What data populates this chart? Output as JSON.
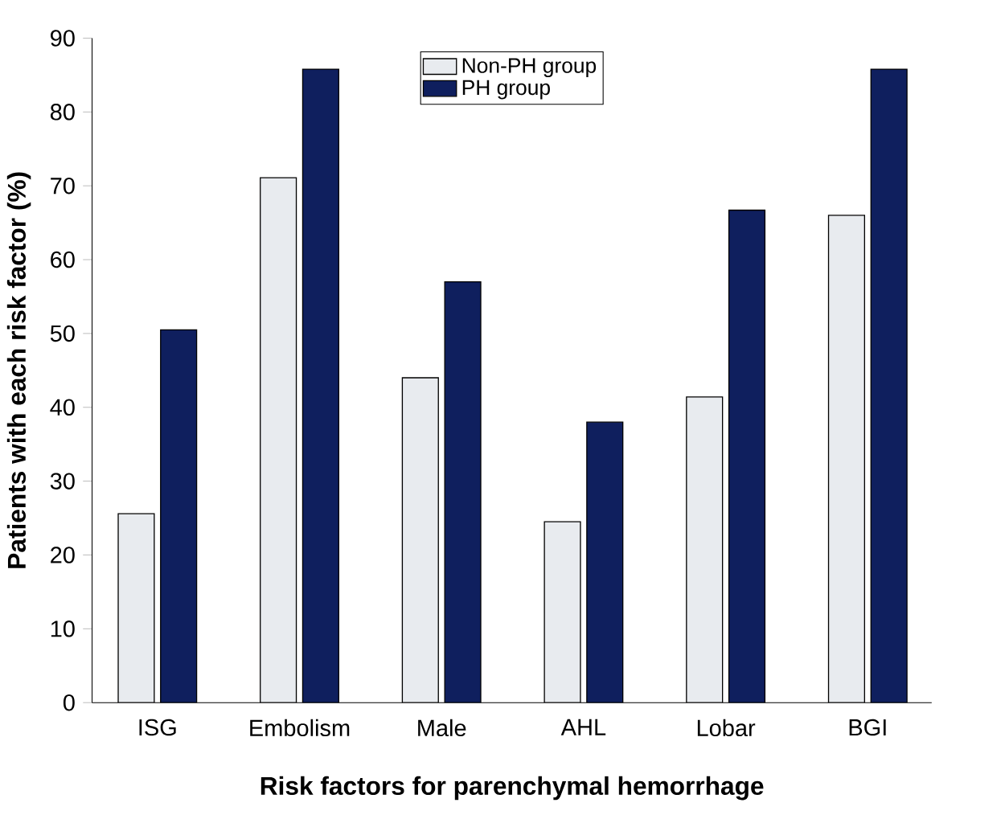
{
  "chart_data": {
    "type": "bar",
    "xlabel": "Risk factors for parenchymal hemorrhage",
    "ylabel": "Patients with each risk factor (%)",
    "categories": [
      "ISG",
      "Embolism",
      "Male",
      "AHL",
      "Lobar",
      "BGI"
    ],
    "series": [
      {
        "name": "Non-PH group",
        "color": "#e8ebef",
        "values": [
          25.6,
          71.1,
          44,
          24.5,
          41.4,
          66
        ]
      },
      {
        "name": "PH group",
        "color": "#0f1f5e",
        "values": [
          50.5,
          85.8,
          57,
          38,
          66.7,
          85.8
        ]
      }
    ],
    "ylim": [
      0,
      90
    ],
    "yticks": [
      0,
      10,
      20,
      30,
      40,
      50,
      60,
      70,
      80,
      90
    ],
    "grid": false,
    "legend": "top"
  }
}
